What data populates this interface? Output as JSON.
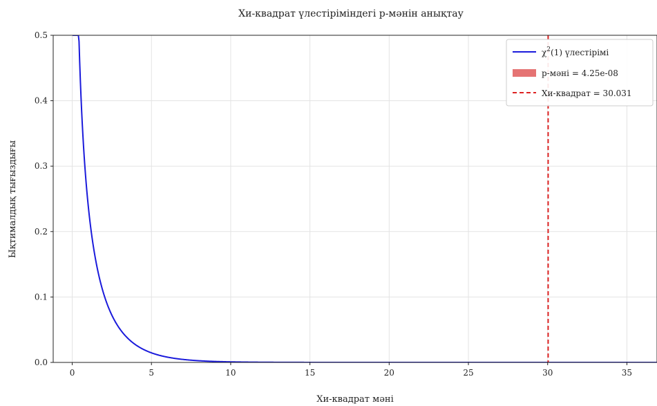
{
  "chart_data": {
    "type": "line",
    "title": "Хи-квадрат үлестіріміндегі p-мәнін анықтау",
    "xlabel": "Хи-квадрат мәні",
    "ylabel": "Ықтималдық тығыздығы",
    "xlim": [
      -1.2,
      36.9
    ],
    "ylim": [
      0,
      0.5
    ],
    "xticks": [
      "0",
      "5",
      "10",
      "15",
      "20",
      "25",
      "30",
      "35"
    ],
    "xtick_values": [
      0,
      5,
      10,
      15,
      20,
      25,
      30,
      35
    ],
    "yticks": [
      "0.0",
      "0.1",
      "0.2",
      "0.3",
      "0.4",
      "0.5"
    ],
    "ytick_values": [
      0,
      0.1,
      0.2,
      0.3,
      0.4,
      0.5
    ],
    "grid": true,
    "legend_position": "top-right",
    "distribution_df": 1,
    "series": [
      {
        "name": "χ²(1) үлестірімі",
        "kind": "line",
        "color": "#1a1adb"
      },
      {
        "name": "p-мәні = 4.25e-08",
        "kind": "area",
        "color": "#e57373"
      },
      {
        "name": "Хи-квадрат = 30.031",
        "kind": "vline",
        "x": 30.031,
        "color": "#dd2222"
      }
    ],
    "legend": {
      "chi_label_main": "χ",
      "chi_label_sup": "2",
      "chi_label_rest": "(1) үлестірімі",
      "pvalue_label": "p-мәні = 4.25e-08",
      "stat_label": "Хи-квадрат = 30.031"
    }
  }
}
